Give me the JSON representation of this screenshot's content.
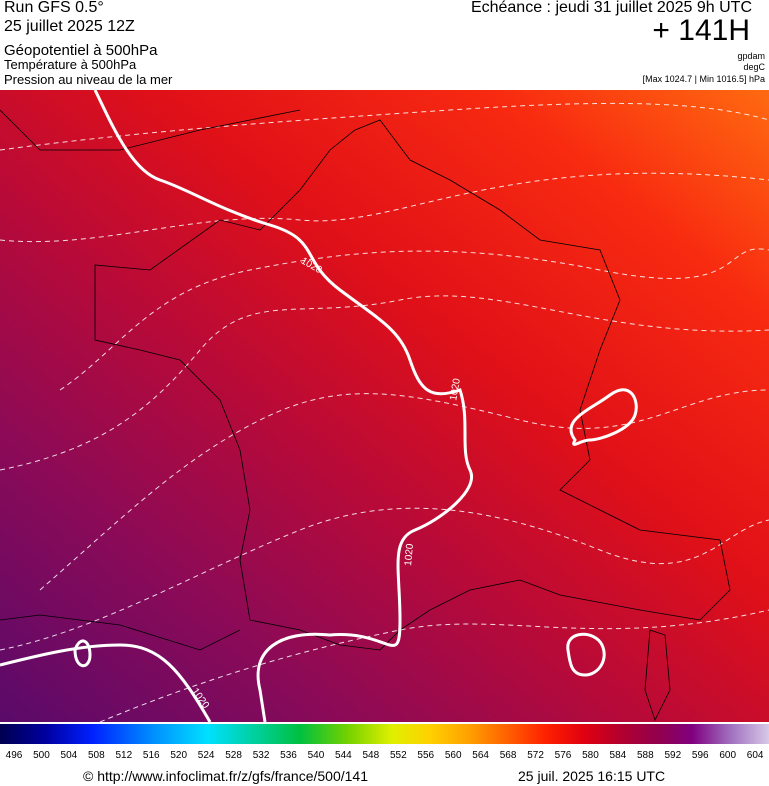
{
  "header": {
    "title": "Run GFS 0.5°",
    "run": "25 juillet 2025 12Z",
    "line1": "Géopotentiel à 500hPa",
    "line2": "Température à 500hPa",
    "line3": "Pression au niveau de la mer",
    "forecast": "Echéance : jeudi 31 juillet 2025 9h UTC",
    "lead": "+ 141H",
    "unit1": "gpdam",
    "unit2": "degC",
    "range": "[Max 1024.7 | Min 1016.5] hPa"
  },
  "map": {
    "isobar_labels": [
      "1020",
      "1020",
      "1020",
      "1020"
    ]
  },
  "colorbar": {
    "labels": [
      496,
      500,
      504,
      508,
      512,
      516,
      520,
      524,
      528,
      532,
      536,
      540,
      544,
      548,
      552,
      556,
      560,
      564,
      568,
      572,
      576,
      580,
      584,
      588,
      592,
      596,
      600,
      604
    ]
  },
  "footer": {
    "url": "© http://www.infoclimat.fr/z/gfs/france/500/141",
    "time": "25 juil. 2025 16:15 UTC"
  }
}
